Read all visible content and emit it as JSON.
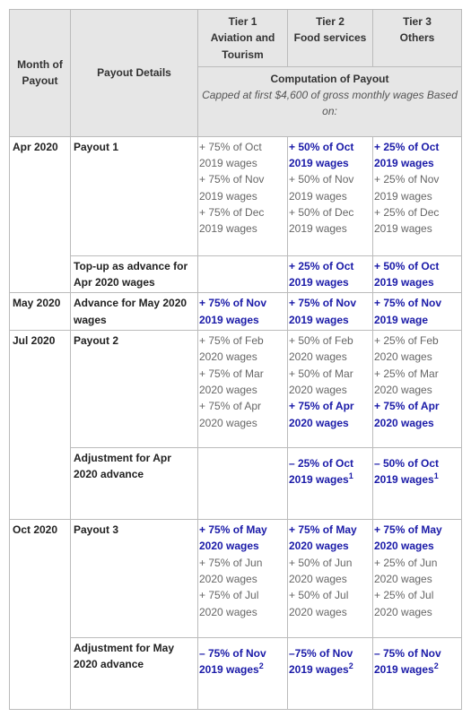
{
  "header": {
    "month": "Month of Payout",
    "details": "Payout Details",
    "tiers": [
      {
        "tier": "Tier 1",
        "sector": "Aviation and Tourism"
      },
      {
        "tier": "Tier 2",
        "sector": "Food services"
      },
      {
        "tier": "Tier 3",
        "sector": "Others"
      }
    ],
    "computation": {
      "title": "Computation of Payout",
      "note": "Capped at first $4,600 of gross monthly wages Based on:"
    }
  },
  "rows": [
    {
      "month": "Apr 2020",
      "items": [
        {
          "details": "Payout 1",
          "tiers": [
            [
              {
                "text": "+ 75% of Oct 2019 wages"
              },
              {
                "text": "+ 75% of Nov 2019 wages"
              },
              {
                "text": "+ 75% of Dec 2019 wages"
              }
            ],
            [
              {
                "text": "+ 50% of Oct 2019 wages",
                "highlight": true
              },
              {
                "text": "+ 50% of Nov 2019 wages"
              },
              {
                "text": "+ 50% of Dec 2019 wages"
              }
            ],
            [
              {
                "text": "+ 25% of Oct 2019 wages",
                "highlight": true
              },
              {
                "text": "+ 25% of Nov 2019 wages"
              },
              {
                "text": "+ 25% of Dec 2019 wages"
              }
            ]
          ]
        },
        {
          "details": "Top-up as advance for Apr 2020 wages",
          "tiers": [
            [],
            [
              {
                "text": "+ 25% of Oct 2019 wages",
                "highlight": true
              }
            ],
            [
              {
                "text": "+ 50% of Oct 2019 wages",
                "highlight": true
              }
            ]
          ]
        }
      ]
    },
    {
      "month": "May 2020",
      "items": [
        {
          "details": "Advance for May 2020 wages",
          "tiers": [
            [
              {
                "text": "+ 75% of Nov 2019 wages",
                "highlight": true
              }
            ],
            [
              {
                "text": "+ 75% of Nov 2019 wages",
                "highlight": true
              }
            ],
            [
              {
                "text": "+ 75% of Nov 2019 wage",
                "highlight": true
              }
            ]
          ]
        }
      ]
    },
    {
      "month": "Jul 2020",
      "items": [
        {
          "details": "Payout 2",
          "tiers": [
            [
              {
                "text": "+ 75% of Feb 2020 wages"
              },
              {
                "text": "+ 75% of Mar 2020 wages"
              },
              {
                "text": "+ 75% of Apr 2020 wages"
              }
            ],
            [
              {
                "text": "+ 50% of Feb 2020 wages"
              },
              {
                "text": "+ 50% of Mar 2020 wages"
              },
              {
                "text": "+ 75% of Apr 2020 wages",
                "highlight": true
              }
            ],
            [
              {
                "text": "+ 25% of Feb 2020 wages"
              },
              {
                "text": "+ 25% of Mar 2020 wages"
              },
              {
                "text": "+ 75% of Apr 2020 wages",
                "highlight": true
              }
            ]
          ]
        },
        {
          "details": "Adjustment for Apr 2020 advance",
          "tiers": [
            [],
            [
              {
                "text": "– 25% of Oct 2019 wages",
                "sup": "1",
                "highlight": true
              }
            ],
            [
              {
                "text": "– 50% of Oct 2019 wages",
                "sup": "1",
                "highlight": true
              }
            ]
          ]
        }
      ]
    },
    {
      "month": "Oct 2020",
      "items": [
        {
          "details": "Payout 3",
          "tiers": [
            [
              {
                "text": "+ 75% of May 2020 wages",
                "highlight": true
              },
              {
                "text": "+ 75% of Jun 2020 wages"
              },
              {
                "text": "+ 75% of Jul 2020 wages"
              }
            ],
            [
              {
                "text": "+ 75% of May 2020 wages",
                "highlight": true
              },
              {
                "text": "+ 50% of Jun 2020 wages"
              },
              {
                "text": "+ 50% of Jul 2020 wages"
              }
            ],
            [
              {
                "text": "+ 75% of May 2020 wages",
                "highlight": true
              },
              {
                "text": "+ 25% of Jun 2020 wages"
              },
              {
                "text": "+ 25% of Jul 2020 wages"
              }
            ]
          ]
        },
        {
          "details": "Adjustment for May 2020 advance",
          "tiers": [
            [
              {
                "text": "– 75% of Nov 2019 wages",
                "sup": "2",
                "highlight": true
              }
            ],
            [
              {
                "text": "–75% of Nov 2019 wages",
                "sup": "2",
                "highlight": true
              }
            ],
            [
              {
                "text": "– 75% of Nov 2019 wages",
                "sup": "2",
                "highlight": true
              }
            ]
          ]
        }
      ]
    }
  ]
}
